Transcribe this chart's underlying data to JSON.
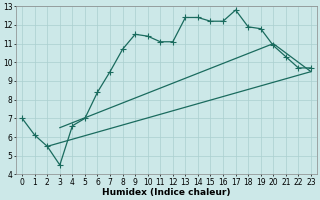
{
  "xlabel": "Humidex (Indice chaleur)",
  "bg_color": "#cce8e8",
  "line_color": "#1a6b5e",
  "grid_color": "#aacfcf",
  "xlim": [
    -0.5,
    23.5
  ],
  "ylim": [
    4,
    13
  ],
  "xticks": [
    0,
    1,
    2,
    3,
    4,
    5,
    6,
    7,
    8,
    9,
    10,
    11,
    12,
    13,
    14,
    15,
    16,
    17,
    18,
    19,
    20,
    21,
    22,
    23
  ],
  "yticks": [
    4,
    5,
    6,
    7,
    8,
    9,
    10,
    11,
    12,
    13
  ],
  "line1_x": [
    0,
    1,
    2,
    3,
    4,
    5,
    6,
    7,
    8,
    9,
    10,
    11,
    12,
    13,
    14,
    15,
    16,
    17,
    18,
    19,
    20,
    21,
    22,
    23
  ],
  "line1_y": [
    7.0,
    6.1,
    5.5,
    4.5,
    6.6,
    7.0,
    8.4,
    9.5,
    10.7,
    11.5,
    11.4,
    11.1,
    11.1,
    12.4,
    12.4,
    12.2,
    12.2,
    12.8,
    11.9,
    11.8,
    10.9,
    10.3,
    9.7,
    9.7
  ],
  "line2_x": [
    2,
    23
  ],
  "line2_y": [
    5.5,
    9.5
  ],
  "line3_x": [
    3,
    20,
    23
  ],
  "line3_y": [
    6.5,
    11.0,
    9.5
  ],
  "marker": "+",
  "markersize": 4,
  "linewidth": 0.9,
  "axis_fontsize": 6.5,
  "tick_fontsize": 5.5
}
